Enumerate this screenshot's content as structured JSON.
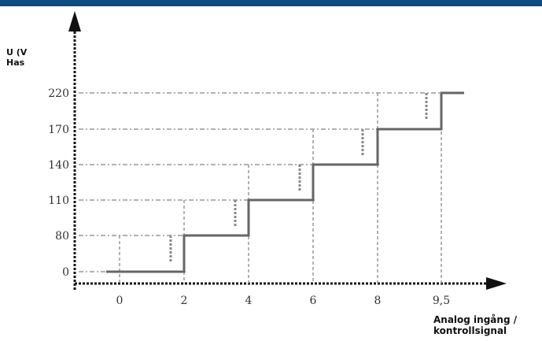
{
  "header": {
    "bar_color": "#0f4c81"
  },
  "y_axis": {
    "label_line1": "U (V",
    "label_line2": "Has"
  },
  "x_axis": {
    "label_line1": "Analog ingång /",
    "label_line2": "kontrollsignal"
  },
  "chart_data": {
    "type": "line",
    "title": "",
    "ylabel": "U (V / Has",
    "xlabel": "Analog ingång / kontrollsignal",
    "y_ticks": [
      "0",
      "80",
      "110",
      "140",
      "170",
      "220"
    ],
    "x_ticks": [
      "0",
      "2",
      "4",
      "6",
      "8",
      "9,5"
    ],
    "series": [
      {
        "x": [
          0,
          2,
          2,
          4,
          4,
          6,
          6,
          8,
          8,
          9.5,
          9.5,
          10.3
        ],
        "y_level": [
          0,
          0,
          1,
          1,
          2,
          2,
          3,
          3,
          4,
          4,
          5,
          5
        ]
      }
    ],
    "grid": "dashed horizontal lines at each y tick",
    "colors": {
      "step": "#666666",
      "grid": "#999999",
      "axis": "#111111"
    }
  }
}
